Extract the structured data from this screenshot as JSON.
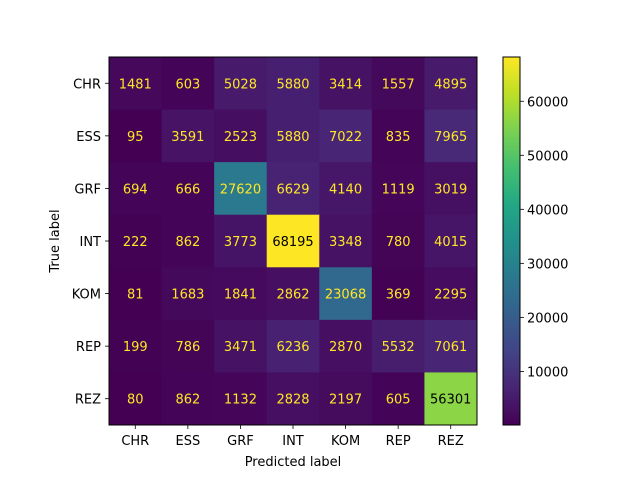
{
  "chart_data": {
    "type": "heatmap",
    "title": "",
    "xlabel": "Predicted label",
    "ylabel": "True label",
    "x_categories": [
      "CHR",
      "ESS",
      "GRF",
      "INT",
      "KOM",
      "REP",
      "REZ"
    ],
    "y_categories": [
      "CHR",
      "ESS",
      "GRF",
      "INT",
      "KOM",
      "REP",
      "REZ"
    ],
    "values": [
      [
        1481,
        603,
        5028,
        5880,
        3414,
        1557,
        4895
      ],
      [
        95,
        3591,
        2523,
        5880,
        7022,
        835,
        7965
      ],
      [
        694,
        666,
        27620,
        6629,
        4140,
        1119,
        3019
      ],
      [
        222,
        862,
        3773,
        68195,
        3348,
        780,
        4015
      ],
      [
        81,
        1683,
        1841,
        2862,
        23068,
        369,
        2295
      ],
      [
        199,
        786,
        3471,
        6236,
        2870,
        5532,
        7061
      ],
      [
        80,
        862,
        1132,
        2828,
        2197,
        605,
        56301
      ]
    ],
    "colormap": "viridis",
    "colorbar": {
      "range": [
        80,
        68195
      ],
      "ticks": [
        10000,
        20000,
        30000,
        40000,
        50000,
        60000
      ],
      "tick_labels": [
        "10000",
        "20000",
        "30000",
        "40000",
        "50000",
        "60000"
      ]
    },
    "text_colors": {
      "light": "#fde725",
      "dark": "#000000"
    }
  }
}
